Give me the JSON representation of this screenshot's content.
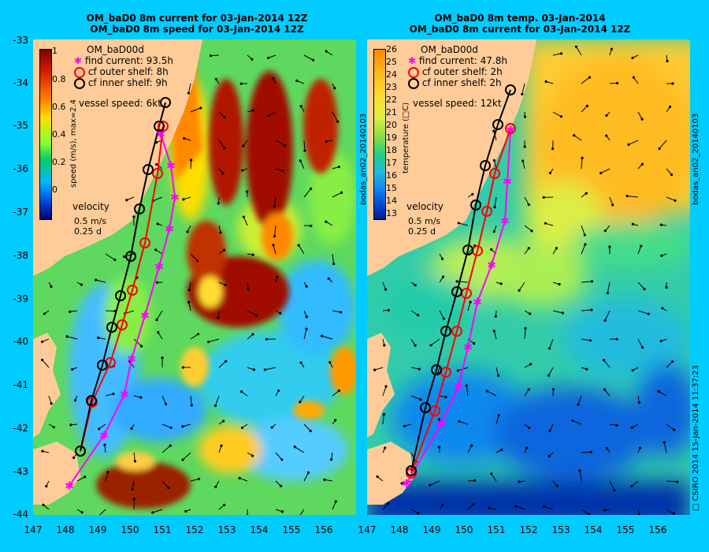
{
  "left": {
    "title1": "OM_baD0 8m current for 03-Jan-2014 12Z",
    "title2": "OM_baD0 8m speed for 03-Jan-2014 12Z",
    "run": "OM_baD00d",
    "find_current": "find current: 93.5h",
    "cf_outer": "cf outer shelf: 8h",
    "cf_inner": "cf inner shelf: 9h",
    "vessel_speed": "vessel speed: 6kt",
    "velocity": "velocity",
    "vel_scale1": "0.5 m/s",
    "vel_scale2": "0.25 d",
    "cbar_label": "speed (m/s), max=2.4",
    "cbar_ticks": [
      "1",
      "0.8",
      "0.6",
      "0.4",
      "0.2",
      "0"
    ]
  },
  "right": {
    "title1": "OM_baD0 8m temp. 03-Jan-2014",
    "title2": "OM_baD0 8m current for 03-Jan-2014 12Z",
    "run": "OM_baD00d",
    "find_current": "find current: 47.8h",
    "cf_outer": "cf outer shelf: 2h",
    "cf_inner": "cf inner shelf: 2h",
    "vessel_speed": "vessel speed: 12kt",
    "velocity": "velocity",
    "vel_scale1": "0.5 m/s",
    "vel_scale2": "0.25 d",
    "cbar_label": "temperature (□C)",
    "cbar_ticks": [
      "26",
      "25",
      "24",
      "23",
      "22",
      "21",
      "20",
      "19",
      "18",
      "17",
      "16",
      "15",
      "14",
      "13"
    ]
  },
  "side_text": {
    "left_analysis": "bodas_an02_20140103",
    "right_analysis": "bodas_an02_20140103",
    "copyright": "□ CSIRO 2014   15-Jan-2014 11:37:23"
  },
  "axes": {
    "y_ticks": [
      "-33",
      "-34",
      "-35",
      "-36",
      "-37",
      "-38",
      "-39",
      "-40",
      "-41",
      "-42",
      "-43",
      "-44"
    ],
    "x_ticks": [
      "147",
      "148",
      "149",
      "150",
      "151",
      "152",
      "153",
      "154",
      "155",
      "156"
    ]
  },
  "colors": {
    "background": "#00ccff",
    "land": "#ffcc99",
    "find_route": "#ff00ff",
    "outer_route": "#ff0000",
    "inner_route": "#000000"
  }
}
